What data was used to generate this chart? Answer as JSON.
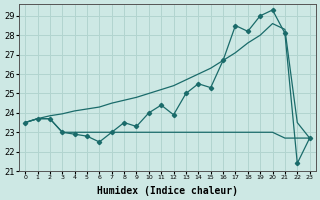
{
  "xlabel": "Humidex (Indice chaleur)",
  "background_color": "#cde8e4",
  "grid_color": "#b2d4cf",
  "line_color": "#1a6b6a",
  "xlim": [
    -0.5,
    23.5
  ],
  "ylim": [
    21.0,
    29.6
  ],
  "yticks": [
    21,
    22,
    23,
    24,
    25,
    26,
    27,
    28,
    29
  ],
  "xtick_labels": [
    "0",
    "1",
    "2",
    "3",
    "4",
    "5",
    "6",
    "7",
    "8",
    "9",
    "10",
    "11",
    "12",
    "13",
    "14",
    "15",
    "16",
    "17",
    "18",
    "19",
    "20",
    "21",
    "22",
    "23"
  ],
  "series_smooth_x": [
    0,
    1,
    2,
    3,
    4,
    5,
    6,
    7,
    8,
    9,
    10,
    11,
    12,
    13,
    14,
    15,
    16,
    17,
    18,
    19,
    20,
    21,
    22,
    23
  ],
  "series_smooth_y": [
    23.5,
    23.7,
    23.85,
    23.95,
    24.1,
    24.2,
    24.3,
    24.5,
    24.65,
    24.8,
    25.0,
    25.2,
    25.4,
    25.7,
    26.0,
    26.3,
    26.7,
    27.1,
    27.6,
    28.0,
    28.6,
    28.3,
    23.5,
    22.7
  ],
  "series_zigzag_x": [
    0,
    1,
    2,
    3,
    4,
    5,
    6,
    7,
    8,
    9,
    10,
    11,
    12,
    13,
    14,
    15,
    16,
    17,
    18,
    19,
    20,
    21,
    22,
    23
  ],
  "series_zigzag_y": [
    23.5,
    23.7,
    23.7,
    23.0,
    22.9,
    22.8,
    22.5,
    23.0,
    23.5,
    23.3,
    24.0,
    24.4,
    23.9,
    25.0,
    25.5,
    25.3,
    26.7,
    28.5,
    28.2,
    29.0,
    29.3,
    28.1,
    21.4,
    22.7
  ],
  "series_flat_x": [
    0,
    1,
    2,
    3,
    4,
    5,
    6,
    7,
    8,
    9,
    10,
    11,
    12,
    13,
    14,
    15,
    16,
    17,
    18,
    19,
    20,
    21,
    22,
    23
  ],
  "series_flat_y": [
    23.5,
    23.7,
    23.7,
    23.0,
    23.0,
    23.0,
    23.0,
    23.0,
    23.0,
    23.0,
    23.0,
    23.0,
    23.0,
    23.0,
    23.0,
    23.0,
    23.0,
    23.0,
    23.0,
    23.0,
    23.0,
    22.7,
    22.7,
    22.7
  ]
}
